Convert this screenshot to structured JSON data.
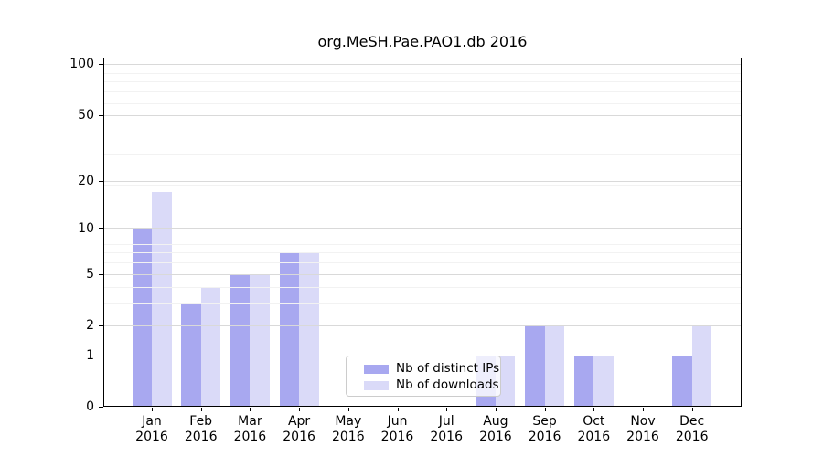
{
  "chart_data": {
    "type": "bar",
    "title": "org.MeSH.Pae.PAO1.db 2016",
    "categories": [
      {
        "month": "Jan",
        "year": "2016"
      },
      {
        "month": "Feb",
        "year": "2016"
      },
      {
        "month": "Mar",
        "year": "2016"
      },
      {
        "month": "Apr",
        "year": "2016"
      },
      {
        "month": "May",
        "year": "2016"
      },
      {
        "month": "Jun",
        "year": "2016"
      },
      {
        "month": "Jul",
        "year": "2016"
      },
      {
        "month": "Aug",
        "year": "2016"
      },
      {
        "month": "Sep",
        "year": "2016"
      },
      {
        "month": "Oct",
        "year": "2016"
      },
      {
        "month": "Nov",
        "year": "2016"
      },
      {
        "month": "Dec",
        "year": "2016"
      }
    ],
    "series": [
      {
        "name": "Nb of distinct IPs",
        "color": "#a8a8f0",
        "values": [
          10,
          3,
          5,
          7,
          0,
          0,
          0,
          1,
          2,
          1,
          0,
          1
        ]
      },
      {
        "name": "Nb of downloads",
        "color": "#dadaf8",
        "values": [
          17,
          4,
          5,
          7,
          0,
          0,
          0,
          1,
          2,
          1,
          0,
          2
        ]
      }
    ],
    "xlabel": "",
    "ylabel": "",
    "y_axis": {
      "scale": "log1p",
      "ticks": [
        {
          "label": "100",
          "value": 100
        },
        {
          "label": "50",
          "value": 50
        },
        {
          "label": "20",
          "value": 20
        },
        {
          "label": "10",
          "value": 10
        },
        {
          "label": "5",
          "value": 5
        },
        {
          "label": "2",
          "value": 2
        },
        {
          "label": "1",
          "value": 1
        },
        {
          "label": "0",
          "value": 0
        }
      ],
      "range": [
        0,
        110
      ]
    },
    "grid": {
      "major_color": "#d9d9d9",
      "minor_color": "#f2f2f2",
      "minor_positions_1px": [
        4,
        5,
        7,
        8,
        9,
        20,
        30,
        40,
        60,
        70,
        80,
        90
      ]
    },
    "legend_position": "inside-lower-left-of-center"
  }
}
